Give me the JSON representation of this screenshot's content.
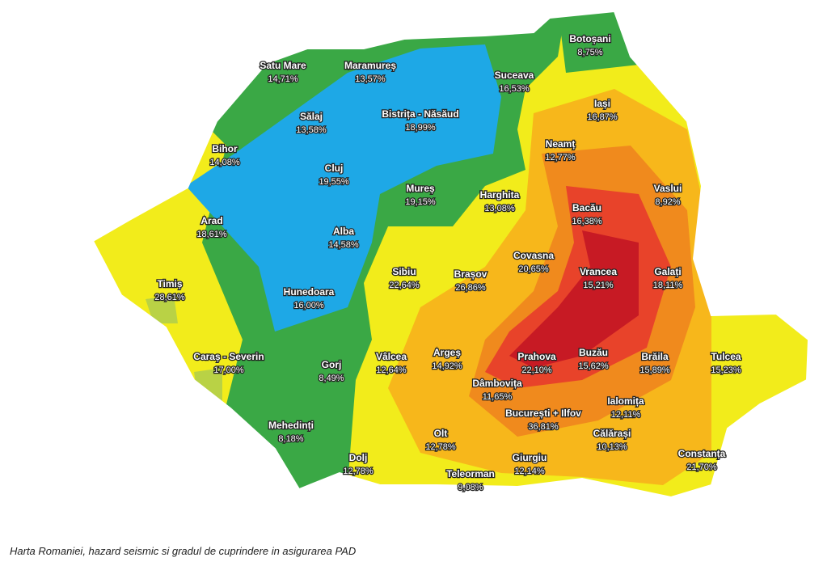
{
  "map": {
    "counties": [
      {
        "name": "Satu Mare",
        "share": "14,71%"
      },
      {
        "name": "Maramureș",
        "share": "13,57%"
      },
      {
        "name": "Botoșani",
        "share": "8,75%"
      },
      {
        "name": "Suceava",
        "share": "16,53%"
      },
      {
        "name": "Sălaj",
        "share": "13,58%"
      },
      {
        "name": "Bistrița - Năsăud",
        "share": "18,99%"
      },
      {
        "name": "Iași",
        "share": "16,87%"
      },
      {
        "name": "Bihor",
        "share": "14,08%"
      },
      {
        "name": "Cluj",
        "share": "19,55%"
      },
      {
        "name": "Neamț",
        "share": "12,77%"
      },
      {
        "name": "Mureș",
        "share": "19,15%"
      },
      {
        "name": "Harghita",
        "share": "13,08%"
      },
      {
        "name": "Bacău",
        "share": "16,38%"
      },
      {
        "name": "Vaslui",
        "share": "8,92%"
      },
      {
        "name": "Arad",
        "share": "18,61%"
      },
      {
        "name": "Alba",
        "share": "14,58%"
      },
      {
        "name": "Covasna",
        "share": "20,65%"
      },
      {
        "name": "Sibiu",
        "share": "22,64%"
      },
      {
        "name": "Brașov",
        "share": "26,86%"
      },
      {
        "name": "Vrancea",
        "share": "15,21%"
      },
      {
        "name": "Galați",
        "share": "18,11%"
      },
      {
        "name": "Timiș",
        "share": "28,61%"
      },
      {
        "name": "Hunedoara",
        "share": "16,00%"
      },
      {
        "name": "Caraș - Severin",
        "share": "17,00%"
      },
      {
        "name": "Gorj",
        "share": "8,49%"
      },
      {
        "name": "Vâlcea",
        "share": "12,64%"
      },
      {
        "name": "Argeș",
        "share": "14,92%"
      },
      {
        "name": "Prahova",
        "share": "22,10%"
      },
      {
        "name": "Buzău",
        "share": "15,62%"
      },
      {
        "name": "Brăila",
        "share": "15,89%"
      },
      {
        "name": "Tulcea",
        "share": "15,23%"
      },
      {
        "name": "Dâmbovița",
        "share": "11,65%"
      },
      {
        "name": "Ialomița",
        "share": "12,11%"
      },
      {
        "name": "București + Ilfov",
        "share": "36,81%"
      },
      {
        "name": "Mehedinți",
        "share": "8,18%"
      },
      {
        "name": "Olt",
        "share": "12,78%"
      },
      {
        "name": "Călărași",
        "share": "10,13%"
      },
      {
        "name": "Dolj",
        "share": "12,78%"
      },
      {
        "name": "Giurgiu",
        "share": "12,14%"
      },
      {
        "name": "Constanța",
        "share": "21,70%"
      },
      {
        "name": "Teleorman",
        "share": "9,08%"
      }
    ],
    "caption": "Harta Romaniei, hazard seismic si gradul de cuprindere in asigurarea PAD"
  }
}
